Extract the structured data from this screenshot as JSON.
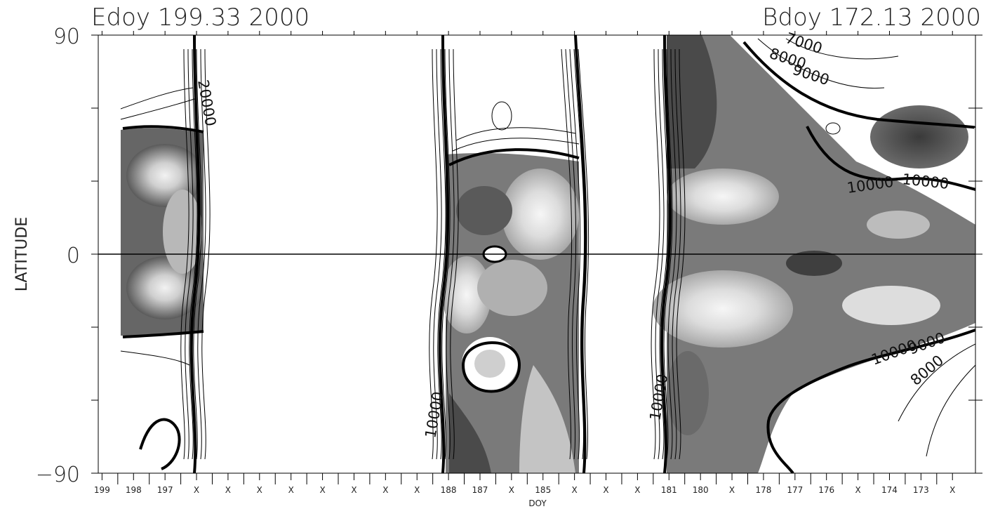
{
  "chart_data": {
    "type": "heatmap",
    "title_left": "Edoy 199.33 2000",
    "title_right": "Bdoy 172.13 2000",
    "xlabel": "DOY",
    "ylabel": "LATITUDE",
    "ylim": [
      -90,
      90
    ],
    "y_ticks": [
      {
        "value": 90,
        "label": "90"
      },
      {
        "value": 0,
        "label": "0"
      },
      {
        "value": -90,
        "label": "−90"
      }
    ],
    "y_minor_ticks": [
      60,
      30,
      -30,
      -60
    ],
    "x_tick_labels": [
      "199",
      "198",
      "197",
      "X",
      "X",
      "X",
      "X",
      "X",
      "X",
      "X",
      "X",
      "188",
      "187",
      "X",
      "185",
      "X",
      "X",
      "X",
      "181",
      "180",
      "X",
      "178",
      "177",
      "176",
      "X",
      "174",
      "173",
      "X"
    ],
    "colormap": [
      "#f4f4f4",
      "#e2e2e2",
      "#cdcdcd",
      "#b4b4b4",
      "#9a9a9a",
      "#808080",
      "#676767",
      "#505050",
      "#3c3c3c"
    ],
    "contour_labels": [
      "7000",
      "8000",
      "9000",
      "10000",
      "10000",
      "10000",
      "9000",
      "8000",
      "20000",
      "10000",
      "10000"
    ],
    "panels": [
      {
        "doy_start": 199.33,
        "doy_end": 196.7,
        "shade_lat": [
          -40,
          55
        ]
      },
      {
        "doy_start": 188.4,
        "doy_end": 184.6,
        "shade_lat": [
          -50,
          40
        ]
      },
      {
        "doy_start": 181.3,
        "doy_end": 172.13,
        "shade_lat": [
          -65,
          70
        ]
      }
    ],
    "equator_line": true,
    "grid": false
  }
}
